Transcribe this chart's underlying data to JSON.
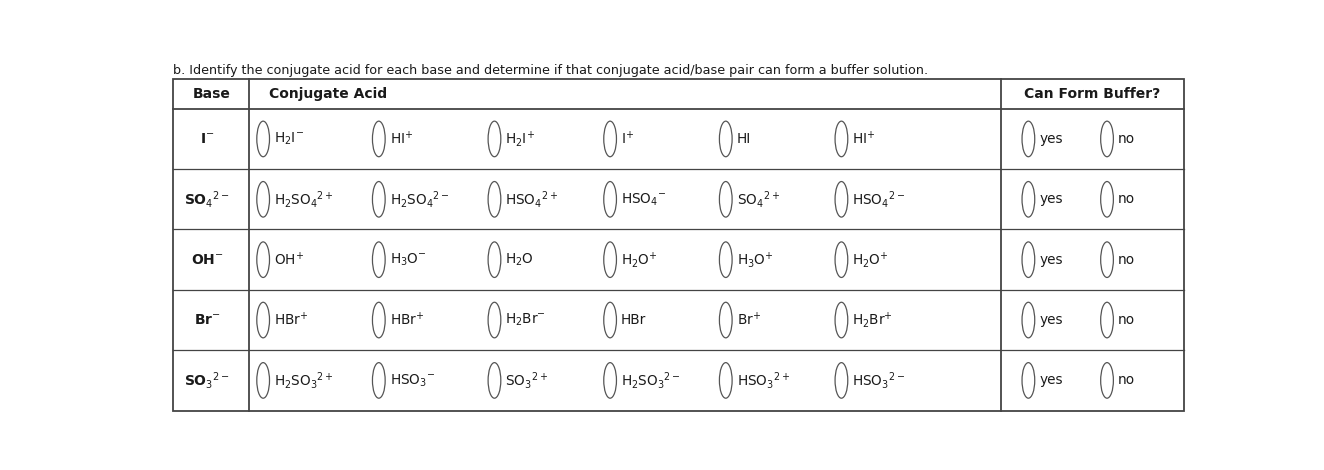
{
  "title": "b. Identify the conjugate acid for each base and determine if that conjugate acid/base pair can form a buffer solution.",
  "bg_color": "#ffffff",
  "border_color": "#444444",
  "text_color": "#1a1a1a",
  "rows": [
    {
      "base": "I$^{-}$",
      "options": [
        {
          "formula": "H$_{2}$I$^{-}$"
        },
        {
          "formula": "HI$^{+}$"
        },
        {
          "formula": "H$_{2}$I$^{+}$"
        },
        {
          "formula": "I$^{+}$"
        },
        {
          "formula": "HI"
        },
        {
          "formula": "HI$^{+}$"
        }
      ]
    },
    {
      "base": "SO$_{4}$$^{2-}$",
      "options": [
        {
          "formula": "H$_{2}$SO$_{4}$$^{2+}$"
        },
        {
          "formula": "H$_{2}$SO$_{4}$$^{2-}$"
        },
        {
          "formula": "HSO$_{4}$$^{2+}$"
        },
        {
          "formula": "HSO$_{4}$$^{-}$"
        },
        {
          "formula": "SO$_{4}$$^{2+}$"
        },
        {
          "formula": "HSO$_{4}$$^{2-}$"
        }
      ]
    },
    {
      "base": "OH$^{-}$",
      "options": [
        {
          "formula": "OH$^{+}$"
        },
        {
          "formula": "H$_{3}$O$^{-}$"
        },
        {
          "formula": "H$_{2}$O"
        },
        {
          "formula": "H$_{2}$O$^{+}$"
        },
        {
          "formula": "H$_{3}$O$^{+}$"
        },
        {
          "formula": "H$_{2}$O$^{+}$"
        }
      ]
    },
    {
      "base": "Br$^{-}$",
      "options": [
        {
          "formula": "HBr$^{+}$"
        },
        {
          "formula": "HBr$^{+}$"
        },
        {
          "formula": "H$_{2}$Br$^{-}$"
        },
        {
          "formula": "HBr"
        },
        {
          "formula": "Br$^{+}$"
        },
        {
          "formula": "H$_{2}$Br$^{+}$"
        }
      ]
    },
    {
      "base": "SO$_{3}$$^{2-}$",
      "options": [
        {
          "formula": "H$_{2}$SO$_{3}$$^{2+}$"
        },
        {
          "formula": "HSO$_{3}$$^{-}$"
        },
        {
          "formula": "SO$_{3}$$^{2+}$"
        },
        {
          "formula": "H$_{2}$SO$_{3}$$^{2-}$"
        },
        {
          "formula": "HSO$_{3}$$^{2+}$"
        },
        {
          "formula": "HSO$_{3}$$^{2-}$"
        }
      ]
    }
  ]
}
